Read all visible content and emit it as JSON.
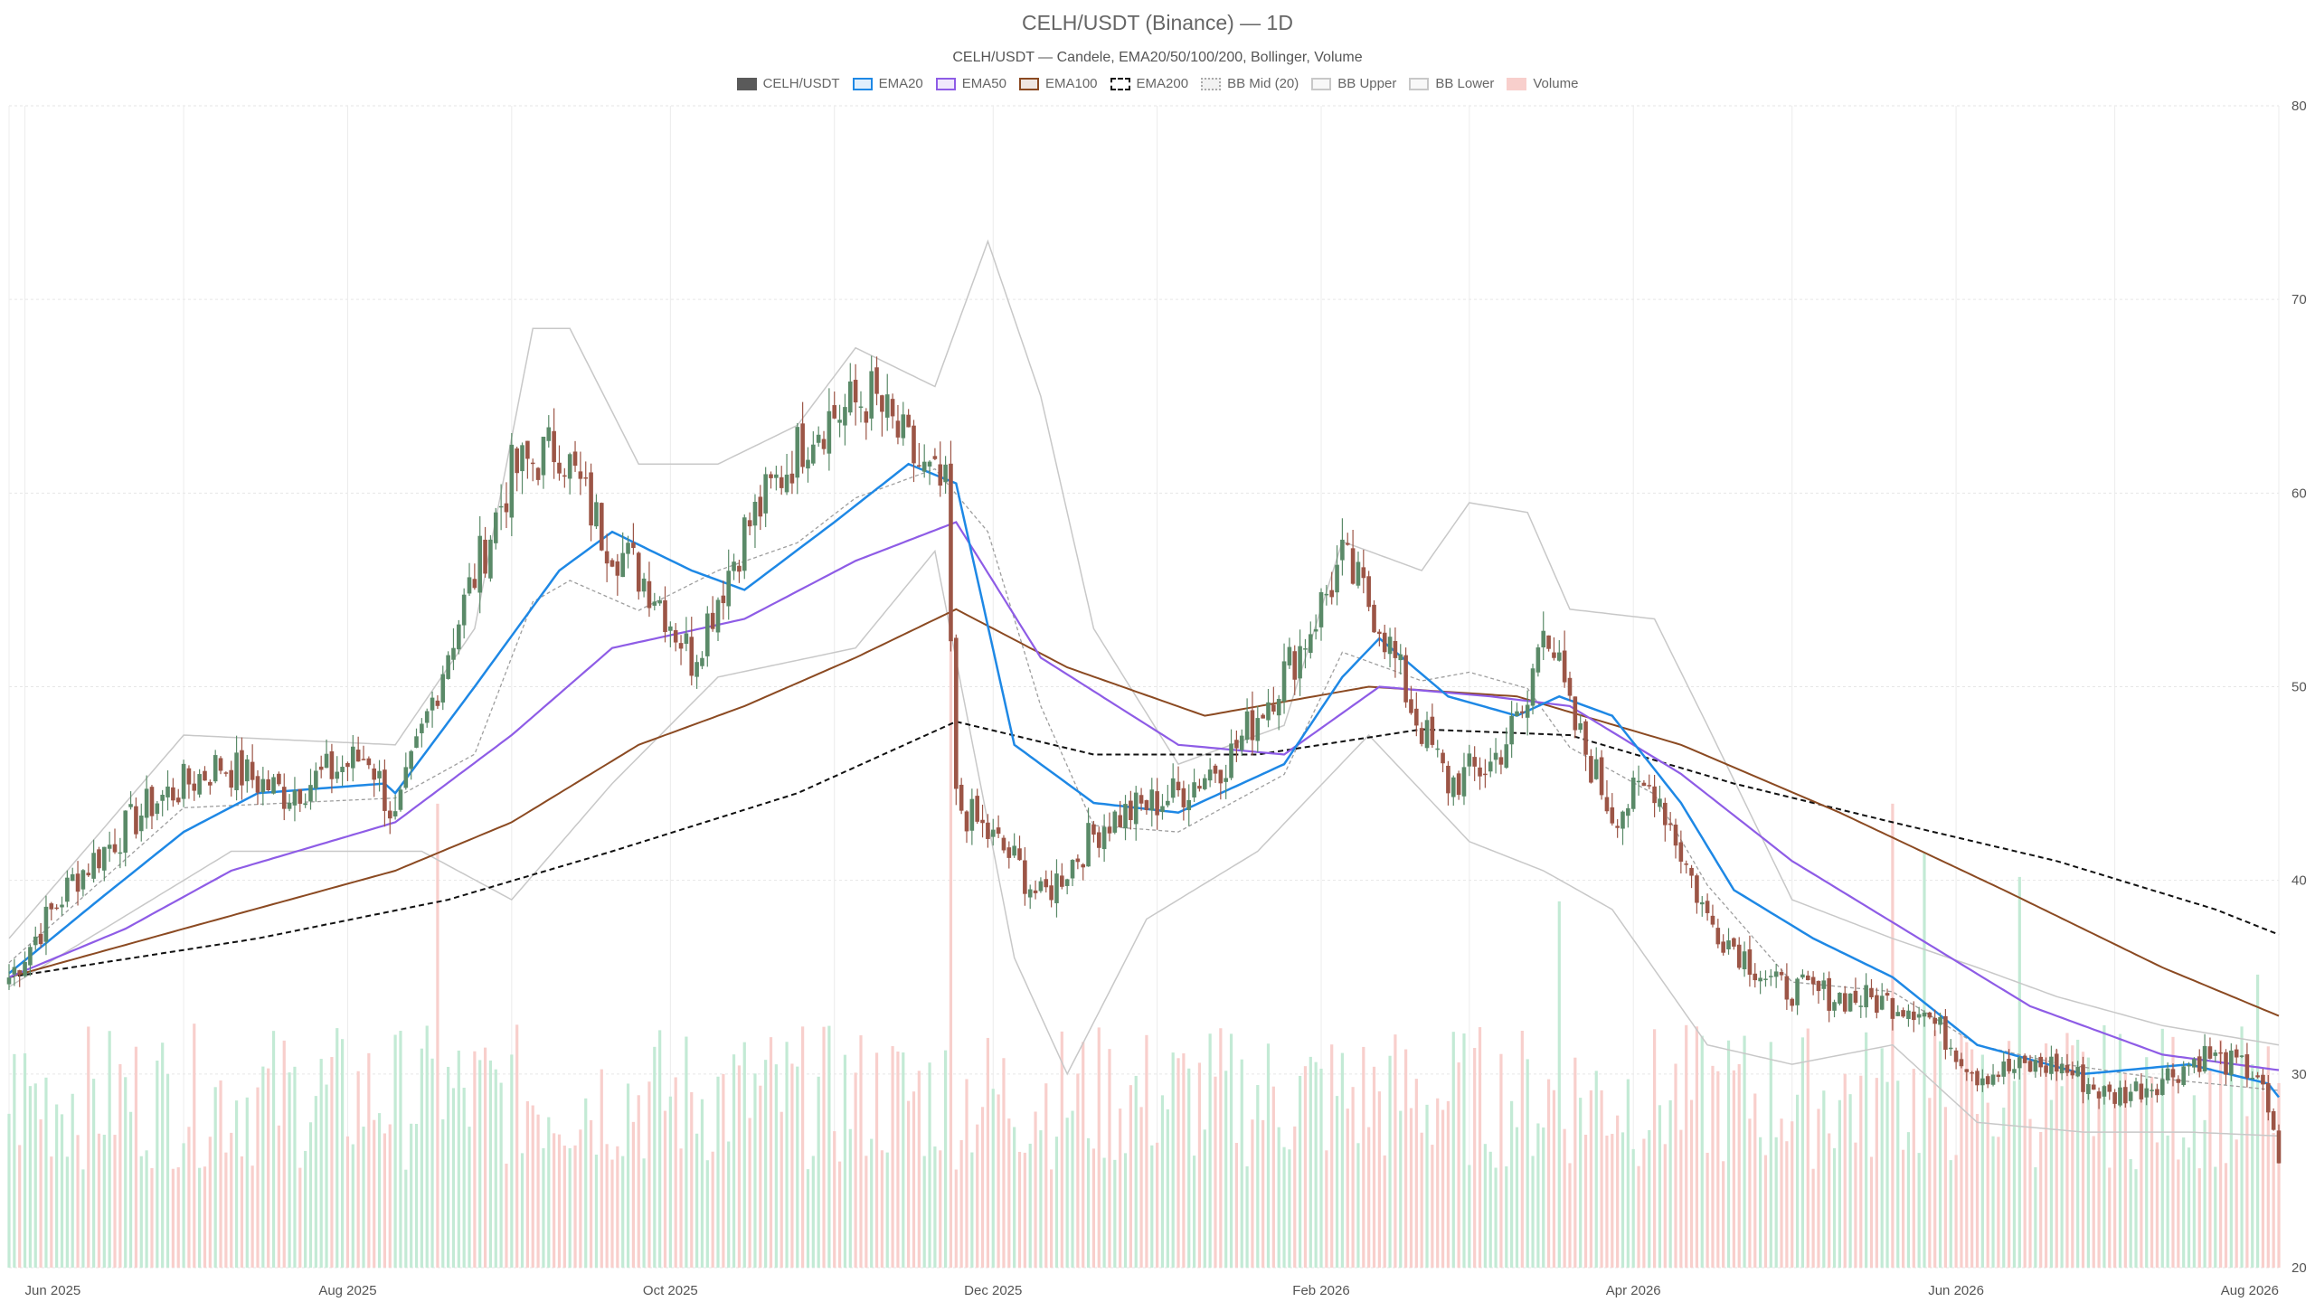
{
  "chart_data": {
    "type": "candlestick",
    "title": "CELH/USDT (Binance) — 1D",
    "subtitle": "CELH/USDT — Candele, EMA20/50/100/200, Bollinger, Volume",
    "legend": [
      {
        "name": "CELH/USDT",
        "color": "#5a5a5a",
        "style": "solid-fill"
      },
      {
        "name": "EMA20",
        "color": "#1e88e5",
        "style": "line"
      },
      {
        "name": "EMA50",
        "color": "#8e5ce6",
        "style": "line"
      },
      {
        "name": "EMA100",
        "color": "#8b4a22",
        "style": "line"
      },
      {
        "name": "EMA200",
        "color": "#111111",
        "style": "dashed"
      },
      {
        "name": "BB Mid (20)",
        "color": "#aaaaaa",
        "style": "dotted"
      },
      {
        "name": "BB Upper",
        "color": "#c8c8c8",
        "style": "line"
      },
      {
        "name": "BB Lower",
        "color": "#c8c8c8",
        "style": "line"
      },
      {
        "name": "Volume",
        "color": "#f4a09a",
        "style": "bar"
      }
    ],
    "legend_position": "top-center",
    "x_ticks": [
      "Jun 2025",
      "Aug 2025",
      "Oct 2025",
      "Dec 2025",
      "Feb 2026",
      "Apr 2026",
      "Jun 2026",
      "Aug 2026"
    ],
    "y_ticks": [
      20,
      30,
      40,
      50,
      60,
      70,
      80
    ],
    "y_axis_side": "right",
    "ylim": [
      20,
      80
    ],
    "x_range": [
      "2025-05-29",
      "2026-08-01"
    ],
    "grid": true,
    "colors": {
      "up": "#5a8a68",
      "down": "#9c5546",
      "vol_up": "#c3ead5",
      "vol_down": "#f8cfcc"
    },
    "close_path": [
      [
        "2025-05-29",
        35.0
      ],
      [
        "2025-06-10",
        40.0
      ],
      [
        "2025-06-25",
        44.0
      ],
      [
        "2025-07-08",
        46.0
      ],
      [
        "2025-07-20",
        44.5
      ],
      [
        "2025-08-05",
        46.5
      ],
      [
        "2025-08-10",
        43.0
      ],
      [
        "2025-08-20",
        52.0
      ],
      [
        "2025-09-01",
        61.0
      ],
      [
        "2025-09-10",
        62.5
      ],
      [
        "2025-09-18",
        58.0
      ],
      [
        "2025-09-28",
        55.0
      ],
      [
        "2025-10-05",
        51.5
      ],
      [
        "2025-10-15",
        58.0
      ],
      [
        "2025-10-28",
        63.5
      ],
      [
        "2025-11-08",
        65.0
      ],
      [
        "2025-11-18",
        61.0
      ],
      [
        "2025-11-22",
        60.0
      ],
      [
        "2025-11-24",
        44.0
      ],
      [
        "2025-12-05",
        41.0
      ],
      [
        "2025-12-10",
        39.0
      ],
      [
        "2025-12-22",
        43.0
      ],
      [
        "2026-01-05",
        44.5
      ],
      [
        "2026-01-15",
        46.5
      ],
      [
        "2026-01-28",
        52.0
      ],
      [
        "2026-02-05",
        56.5
      ],
      [
        "2026-02-12",
        53.5
      ],
      [
        "2026-02-18",
        49.0
      ],
      [
        "2026-02-25",
        45.0
      ],
      [
        "2026-03-05",
        46.0
      ],
      [
        "2026-03-12",
        49.0
      ],
      [
        "2026-03-15",
        54.0
      ],
      [
        "2026-03-20",
        48.5
      ],
      [
        "2026-03-28",
        43.5
      ],
      [
        "2026-04-05",
        45.0
      ],
      [
        "2026-04-15",
        38.0
      ],
      [
        "2026-04-28",
        34.5
      ],
      [
        "2026-05-10",
        34.0
      ],
      [
        "2026-05-25",
        33.5
      ],
      [
        "2026-06-05",
        30.0
      ],
      [
        "2026-06-20",
        30.5
      ],
      [
        "2026-06-30",
        28.8
      ],
      [
        "2026-07-08",
        29.5
      ],
      [
        "2026-07-18",
        31.0
      ],
      [
        "2026-07-28",
        30.0
      ],
      [
        "2026-08-01",
        25.5
      ]
    ],
    "ema20_path": [
      [
        "2025-05-29",
        35.2
      ],
      [
        "2025-06-15",
        39.0
      ],
      [
        "2025-07-01",
        42.5
      ],
      [
        "2025-07-15",
        44.5
      ],
      [
        "2025-08-08",
        45.0
      ],
      [
        "2025-08-10",
        44.5
      ],
      [
        "2025-08-25",
        50.0
      ],
      [
        "2025-09-10",
        56.0
      ],
      [
        "2025-09-20",
        58.0
      ],
      [
        "2025-10-05",
        56.0
      ],
      [
        "2025-10-15",
        55.0
      ],
      [
        "2025-11-01",
        58.5
      ],
      [
        "2025-11-15",
        61.5
      ],
      [
        "2025-11-24",
        60.5
      ],
      [
        "2025-12-05",
        47.0
      ],
      [
        "2025-12-20",
        44.0
      ],
      [
        "2026-01-05",
        43.5
      ],
      [
        "2026-01-25",
        46.0
      ],
      [
        "2026-02-05",
        50.5
      ],
      [
        "2026-02-12",
        52.5
      ],
      [
        "2026-02-25",
        49.5
      ],
      [
        "2026-03-10",
        48.5
      ],
      [
        "2026-03-18",
        49.5
      ],
      [
        "2026-03-28",
        48.5
      ],
      [
        "2026-04-10",
        44.0
      ],
      [
        "2026-04-20",
        39.5
      ],
      [
        "2026-05-05",
        37.0
      ],
      [
        "2026-05-20",
        35.0
      ],
      [
        "2026-06-05",
        31.5
      ],
      [
        "2026-06-25",
        30.0
      ],
      [
        "2026-07-15",
        30.5
      ],
      [
        "2026-07-30",
        29.5
      ],
      [
        "2026-08-01",
        28.8
      ]
    ],
    "ema50_path": [
      [
        "2025-05-29",
        35.0
      ],
      [
        "2025-06-20",
        37.5
      ],
      [
        "2025-07-10",
        40.5
      ],
      [
        "2025-08-10",
        43.0
      ],
      [
        "2025-09-01",
        47.5
      ],
      [
        "2025-09-20",
        52.0
      ],
      [
        "2025-10-15",
        53.5
      ],
      [
        "2025-11-05",
        56.5
      ],
      [
        "2025-11-24",
        58.5
      ],
      [
        "2025-12-10",
        51.5
      ],
      [
        "2026-01-05",
        47.0
      ],
      [
        "2026-01-25",
        46.5
      ],
      [
        "2026-02-12",
        50.0
      ],
      [
        "2026-03-05",
        49.5
      ],
      [
        "2026-03-20",
        49.0
      ],
      [
        "2026-04-10",
        45.5
      ],
      [
        "2026-05-01",
        41.0
      ],
      [
        "2026-05-25",
        37.0
      ],
      [
        "2026-06-15",
        33.5
      ],
      [
        "2026-07-10",
        31.0
      ],
      [
        "2026-08-01",
        30.2
      ]
    ],
    "ema100_path": [
      [
        "2025-05-29",
        35.0
      ],
      [
        "2025-07-01",
        37.5
      ],
      [
        "2025-08-10",
        40.5
      ],
      [
        "2025-09-01",
        43.0
      ],
      [
        "2025-09-25",
        47.0
      ],
      [
        "2025-10-15",
        49.0
      ],
      [
        "2025-11-05",
        51.5
      ],
      [
        "2025-11-24",
        54.0
      ],
      [
        "2025-12-15",
        51.0
      ],
      [
        "2026-01-10",
        48.5
      ],
      [
        "2026-02-10",
        50.0
      ],
      [
        "2026-03-10",
        49.5
      ],
      [
        "2026-04-10",
        47.0
      ],
      [
        "2026-05-10",
        43.5
      ],
      [
        "2026-06-10",
        39.5
      ],
      [
        "2026-07-10",
        35.5
      ],
      [
        "2026-08-01",
        33.0
      ]
    ],
    "ema200_path": [
      [
        "2025-05-29",
        35.0
      ],
      [
        "2025-07-15",
        37.0
      ],
      [
        "2025-08-20",
        39.0
      ],
      [
        "2025-09-20",
        41.5
      ],
      [
        "2025-10-25",
        44.5
      ],
      [
        "2025-11-24",
        48.2
      ],
      [
        "2025-12-20",
        46.5
      ],
      [
        "2026-01-20",
        46.5
      ],
      [
        "2026-02-20",
        47.8
      ],
      [
        "2026-03-20",
        47.5
      ],
      [
        "2026-04-20",
        45.0
      ],
      [
        "2026-05-20",
        43.0
      ],
      [
        "2026-06-20",
        41.0
      ],
      [
        "2026-07-20",
        38.5
      ],
      [
        "2026-08-01",
        37.2
      ]
    ],
    "bb_upper_path": [
      [
        "2025-05-29",
        37.0
      ],
      [
        "2025-07-01",
        47.5
      ],
      [
        "2025-08-10",
        47.0
      ],
      [
        "2025-08-25",
        53.0
      ],
      [
        "2025-09-05",
        68.5
      ],
      [
        "2025-09-12",
        68.5
      ],
      [
        "2025-09-25",
        61.5
      ],
      [
        "2025-10-10",
        61.5
      ],
      [
        "2025-10-25",
        63.5
      ],
      [
        "2025-11-05",
        67.5
      ],
      [
        "2025-11-20",
        65.5
      ],
      [
        "2025-11-30",
        73.0
      ],
      [
        "2025-12-10",
        65.0
      ],
      [
        "2025-12-20",
        53.0
      ],
      [
        "2026-01-05",
        46.0
      ],
      [
        "2026-01-25",
        48.0
      ],
      [
        "2026-02-05",
        57.5
      ],
      [
        "2026-02-20",
        56.0
      ],
      [
        "2026-03-01",
        59.5
      ],
      [
        "2026-03-12",
        59.0
      ],
      [
        "2026-03-20",
        54.0
      ],
      [
        "2026-04-05",
        53.5
      ],
      [
        "2026-04-15",
        48.0
      ],
      [
        "2026-05-01",
        39.0
      ],
      [
        "2026-05-20",
        37.0
      ],
      [
        "2026-06-05",
        35.5
      ],
      [
        "2026-06-20",
        34.0
      ],
      [
        "2026-07-10",
        32.5
      ],
      [
        "2026-08-01",
        31.5
      ]
    ],
    "bb_lower_path": [
      [
        "2025-05-29",
        34.5
      ],
      [
        "2025-07-10",
        41.5
      ],
      [
        "2025-08-15",
        41.5
      ],
      [
        "2025-09-01",
        39.0
      ],
      [
        "2025-09-20",
        45.0
      ],
      [
        "2025-10-10",
        50.5
      ],
      [
        "2025-11-05",
        52.0
      ],
      [
        "2025-11-20",
        57.0
      ],
      [
        "2025-12-05",
        36.0
      ],
      [
        "2025-12-15",
        30.0
      ],
      [
        "2025-12-30",
        38.0
      ],
      [
        "2026-01-20",
        41.5
      ],
      [
        "2026-02-10",
        47.5
      ],
      [
        "2026-03-01",
        42.0
      ],
      [
        "2026-03-15",
        40.5
      ],
      [
        "2026-03-28",
        38.5
      ],
      [
        "2026-04-15",
        31.5
      ],
      [
        "2026-05-01",
        30.5
      ],
      [
        "2026-05-20",
        31.5
      ],
      [
        "2026-06-05",
        27.5
      ],
      [
        "2026-06-25",
        27.0
      ],
      [
        "2026-07-15",
        27.0
      ],
      [
        "2026-08-01",
        26.8
      ]
    ],
    "volume_max": 59,
    "volume_spikes": [
      [
        "2025-08-18",
        38
      ],
      [
        "2025-11-23",
        59
      ],
      [
        "2026-03-18",
        30
      ],
      [
        "2026-05-20",
        38
      ],
      [
        "2026-05-26",
        34
      ],
      [
        "2026-06-13",
        32
      ],
      [
        "2026-07-28",
        24
      ]
    ]
  }
}
